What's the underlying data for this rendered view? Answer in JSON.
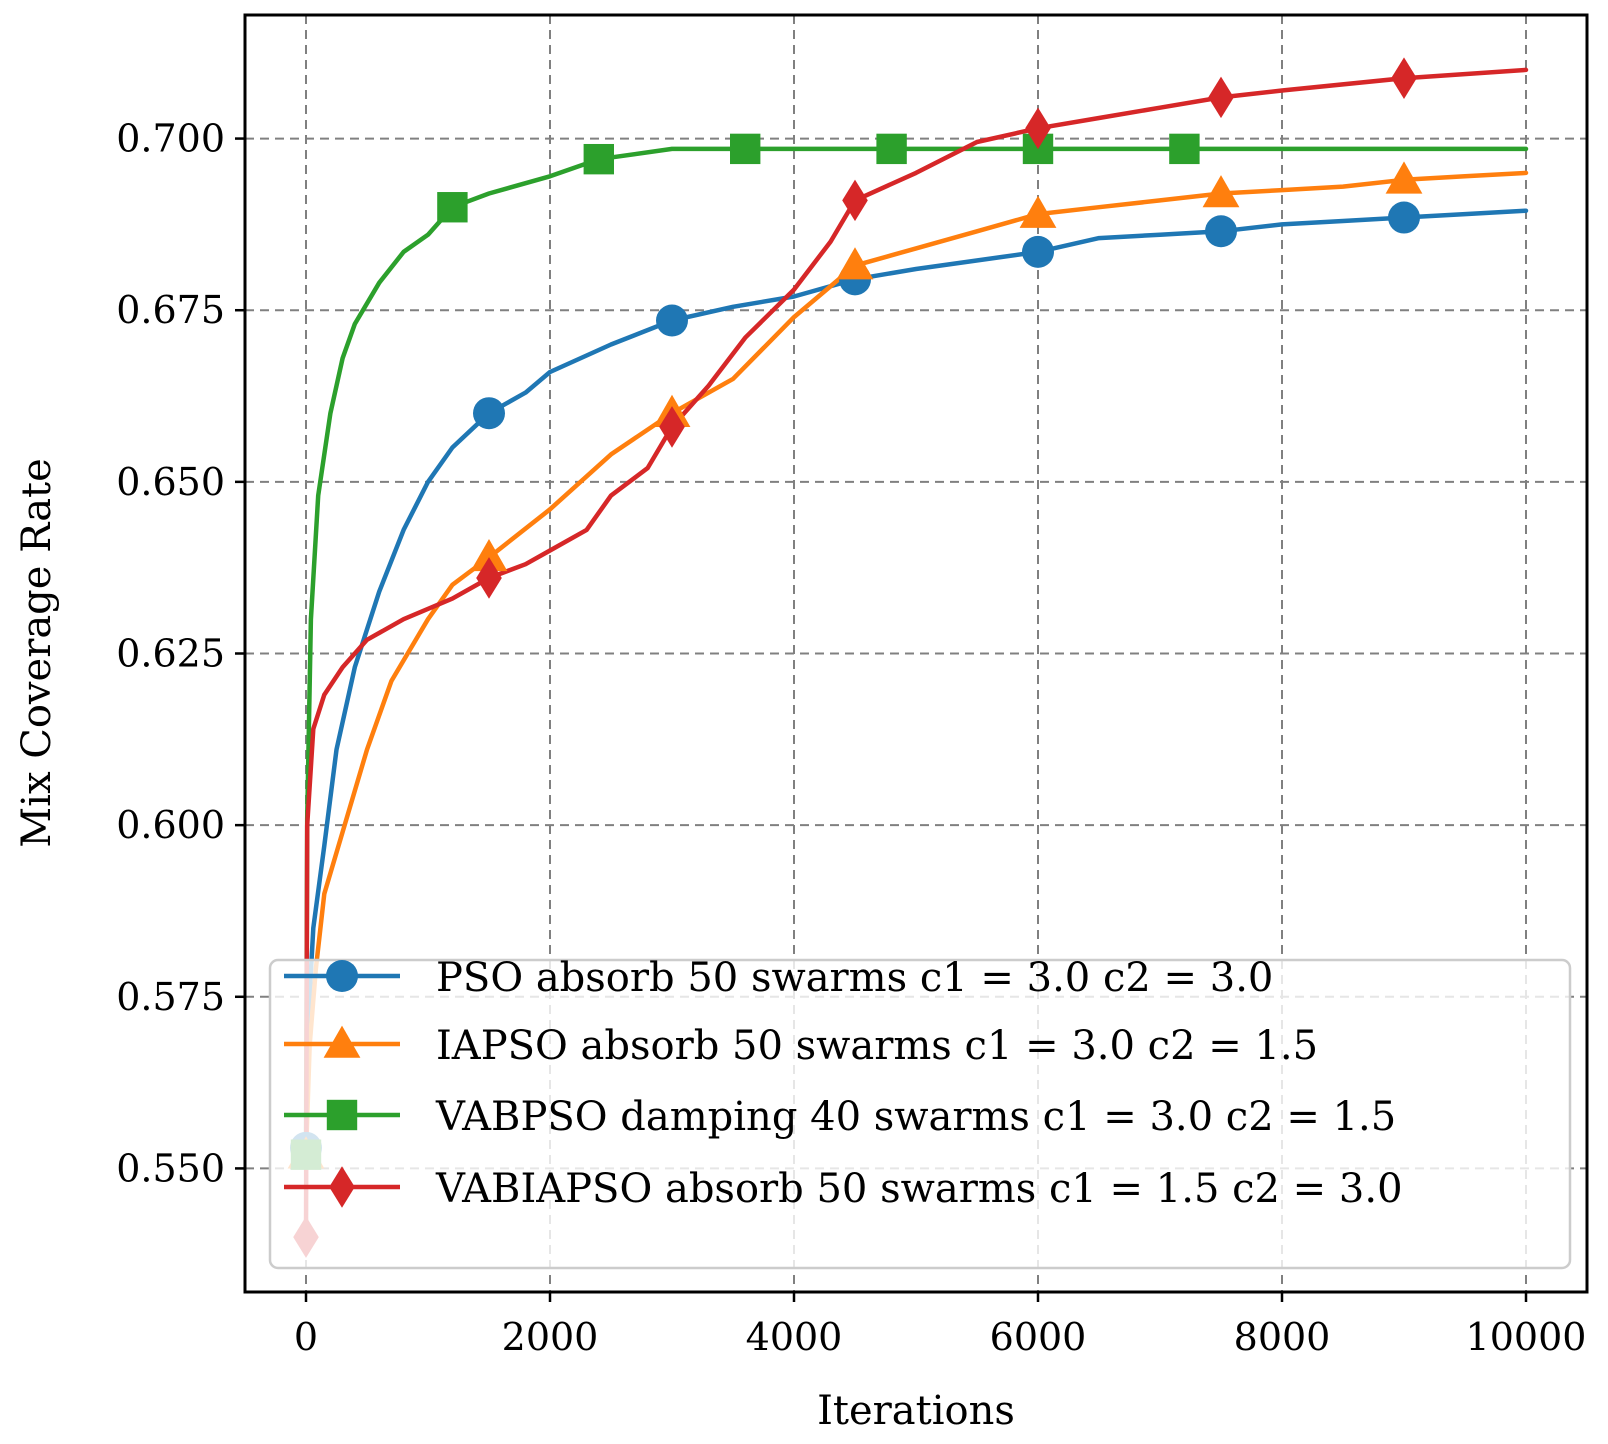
{
  "chart_data": {
    "type": "line",
    "xlabel": "Iterations",
    "ylabel": "Mix Coverage Rate",
    "xlim": [
      -500,
      10500
    ],
    "ylim": [
      0.532,
      0.718
    ],
    "grid": true,
    "legend_position": "bottom-right",
    "xticks": [
      0,
      2000,
      4000,
      6000,
      8000,
      10000
    ],
    "xtick_labels": [
      "0",
      "2000",
      "4000",
      "6000",
      "8000",
      "10000"
    ],
    "yticks": [
      0.55,
      0.575,
      0.6,
      0.625,
      0.65,
      0.675,
      0.7
    ],
    "ytick_labels": [
      "0.550",
      "0.575",
      "0.600",
      "0.625",
      "0.650",
      "0.675",
      "0.700"
    ],
    "series": [
      {
        "name": "PSO absorb 50 swarms c1 = 3.0 c2 = 3.0",
        "color": "#1f77b4",
        "marker": "circle",
        "points": [
          [
            0,
            0.553
          ],
          [
            20,
            0.572
          ],
          [
            60,
            0.585
          ],
          [
            150,
            0.597
          ],
          [
            250,
            0.611
          ],
          [
            400,
            0.623
          ],
          [
            600,
            0.634
          ],
          [
            800,
            0.643
          ],
          [
            1000,
            0.65
          ],
          [
            1200,
            0.655
          ],
          [
            1500,
            0.66
          ],
          [
            1800,
            0.663
          ],
          [
            2000,
            0.666
          ],
          [
            2500,
            0.67
          ],
          [
            3000,
            0.6735
          ],
          [
            3500,
            0.6755
          ],
          [
            4000,
            0.677
          ],
          [
            4500,
            0.6795
          ],
          [
            5000,
            0.681
          ],
          [
            6000,
            0.6835
          ],
          [
            6500,
            0.6855
          ],
          [
            7000,
            0.686
          ],
          [
            7500,
            0.6865
          ],
          [
            8000,
            0.6875
          ],
          [
            8500,
            0.688
          ],
          [
            9000,
            0.6885
          ],
          [
            9500,
            0.689
          ],
          [
            10000,
            0.6895
          ]
        ],
        "markers_at": [
          [
            0,
            0.553
          ],
          [
            1500,
            0.66
          ],
          [
            3000,
            0.6735
          ],
          [
            4500,
            0.6795
          ],
          [
            6000,
            0.6835
          ],
          [
            7500,
            0.6865
          ],
          [
            9000,
            0.6885
          ]
        ]
      },
      {
        "name": "IAPSO absorb 50 swarms c1 = 3.0 c2 = 1.5",
        "color": "#ff7f0e",
        "marker": "triangle",
        "points": [
          [
            0,
            0.552
          ],
          [
            30,
            0.568
          ],
          [
            80,
            0.579
          ],
          [
            150,
            0.59
          ],
          [
            300,
            0.599
          ],
          [
            500,
            0.611
          ],
          [
            700,
            0.621
          ],
          [
            1000,
            0.63
          ],
          [
            1200,
            0.635
          ],
          [
            1500,
            0.639
          ],
          [
            2000,
            0.646
          ],
          [
            2500,
            0.654
          ],
          [
            3000,
            0.66
          ],
          [
            3500,
            0.665
          ],
          [
            4000,
            0.674
          ],
          [
            4500,
            0.6815
          ],
          [
            5000,
            0.684
          ],
          [
            5500,
            0.6865
          ],
          [
            6000,
            0.689
          ],
          [
            6500,
            0.69
          ],
          [
            7000,
            0.691
          ],
          [
            7500,
            0.692
          ],
          [
            8000,
            0.6925
          ],
          [
            8500,
            0.693
          ],
          [
            9000,
            0.694
          ],
          [
            9500,
            0.6945
          ],
          [
            10000,
            0.695
          ]
        ],
        "markers_at": [
          [
            0,
            0.552
          ],
          [
            1500,
            0.639
          ],
          [
            3000,
            0.66
          ],
          [
            4500,
            0.6815
          ],
          [
            6000,
            0.689
          ],
          [
            7500,
            0.692
          ],
          [
            9000,
            0.694
          ]
        ]
      },
      {
        "name": "VABPSO damping 40 swarms c1 = 3.0 c2 = 1.5",
        "color": "#2ca02c",
        "marker": "square",
        "points": [
          [
            0,
            0.552
          ],
          [
            10,
            0.601
          ],
          [
            40,
            0.63
          ],
          [
            100,
            0.648
          ],
          [
            200,
            0.66
          ],
          [
            300,
            0.668
          ],
          [
            400,
            0.673
          ],
          [
            600,
            0.679
          ],
          [
            800,
            0.6835
          ],
          [
            1000,
            0.686
          ],
          [
            1200,
            0.69
          ],
          [
            1500,
            0.692
          ],
          [
            2000,
            0.6945
          ],
          [
            2400,
            0.697
          ],
          [
            3000,
            0.6985
          ],
          [
            3600,
            0.6985
          ],
          [
            4800,
            0.6985
          ],
          [
            6000,
            0.6985
          ],
          [
            7200,
            0.6985
          ],
          [
            10000,
            0.6985
          ]
        ],
        "markers_at": [
          [
            0,
            0.552
          ],
          [
            1200,
            0.69
          ],
          [
            2400,
            0.697
          ],
          [
            3600,
            0.6985
          ],
          [
            4800,
            0.6985
          ],
          [
            6000,
            0.6985
          ],
          [
            7200,
            0.6985
          ]
        ]
      },
      {
        "name": "VABIAPSO absorb 50 swarms c1 = 1.5 c2 = 3.0",
        "color": "#d62728",
        "marker": "diamond",
        "points": [
          [
            0,
            0.54
          ],
          [
            10,
            0.6
          ],
          [
            60,
            0.614
          ],
          [
            150,
            0.619
          ],
          [
            300,
            0.623
          ],
          [
            500,
            0.627
          ],
          [
            800,
            0.63
          ],
          [
            1200,
            0.633
          ],
          [
            1500,
            0.636
          ],
          [
            1800,
            0.638
          ],
          [
            2000,
            0.64
          ],
          [
            2300,
            0.643
          ],
          [
            2500,
            0.648
          ],
          [
            2800,
            0.652
          ],
          [
            3000,
            0.658
          ],
          [
            3300,
            0.664
          ],
          [
            3600,
            0.671
          ],
          [
            4000,
            0.678
          ],
          [
            4300,
            0.685
          ],
          [
            4500,
            0.691
          ],
          [
            5000,
            0.695
          ],
          [
            5500,
            0.6995
          ],
          [
            6000,
            0.7015
          ],
          [
            6500,
            0.703
          ],
          [
            7000,
            0.7045
          ],
          [
            7500,
            0.706
          ],
          [
            8000,
            0.707
          ],
          [
            9000,
            0.7088
          ],
          [
            10000,
            0.71
          ]
        ],
        "markers_at": [
          [
            0,
            0.54
          ],
          [
            1500,
            0.636
          ],
          [
            3000,
            0.658
          ],
          [
            4500,
            0.691
          ],
          [
            6000,
            0.7015
          ],
          [
            7500,
            0.706
          ],
          [
            9000,
            0.7088
          ]
        ]
      }
    ]
  }
}
